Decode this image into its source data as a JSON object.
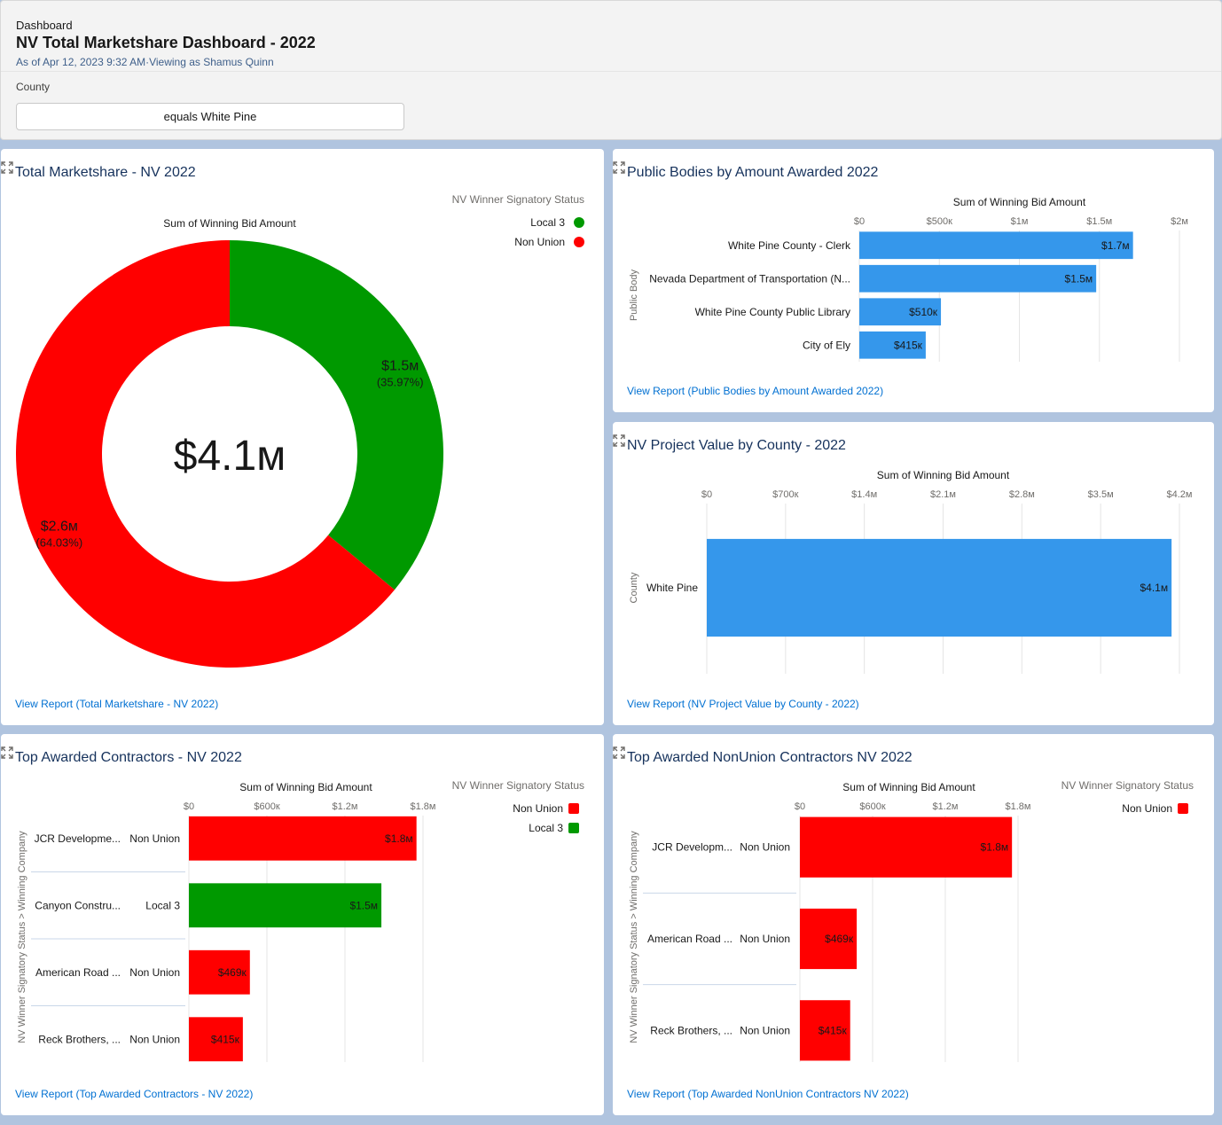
{
  "header": {
    "breadcrumb": "Dashboard",
    "title": "NV Total Marketshare Dashboard - 2022",
    "subtitle": "As of Apr 12, 2023 9:32 AM·Viewing as Shamus Quinn",
    "filter_label": "County",
    "filter_value": "equals White Pine"
  },
  "colors": {
    "green": "#009900",
    "red": "#ff0000",
    "blue": "#3597eb",
    "link": "#0070d2"
  },
  "cards": {
    "marketshare": {
      "title": "Total Marketshare - NV 2022",
      "link": "View Report (Total Marketshare - NV 2022)",
      "center_label": "$4.1м"
    },
    "public_bodies": {
      "title": "Public Bodies by Amount Awarded 2022",
      "link": "View Report (Public Bodies by Amount Awarded 2022)"
    },
    "county": {
      "title": "NV Project Value by County - 2022",
      "link": "View Report (NV Project Value by County - 2022)"
    },
    "top_contractors": {
      "title": "Top Awarded Contractors - NV 2022",
      "link": "View Report (Top Awarded Contractors - NV 2022)"
    },
    "nonunion_contractors": {
      "title": "Top Awarded NonUnion Contractors NV 2022",
      "link": "View Report (Top Awarded NonUnion Contractors NV 2022)"
    }
  },
  "chart_data": [
    {
      "id": "marketshare",
      "type": "pie",
      "title": "Total Marketshare - NV 2022",
      "subtitle": "Sum of Winning Bid Amount",
      "legend_title": "NV Winner Signatory Status",
      "legend_position": "top-right",
      "total_label": "$4.1м",
      "slices": [
        {
          "name": "Local 3",
          "value": 1.5,
          "label": "$1.5м",
          "percent": "(35.97%)",
          "share": 35.97,
          "color": "#009900"
        },
        {
          "name": "Non Union",
          "value": 2.6,
          "label": "$2.6м",
          "percent": "(64.03%)",
          "share": 64.03,
          "color": "#ff0000"
        }
      ]
    },
    {
      "id": "public_bodies",
      "type": "bar",
      "orientation": "horizontal",
      "title": "Public Bodies by Amount Awarded 2022",
      "xlabel": "Sum of Winning Bid Amount",
      "ylabel": "Public Body",
      "xlim": [
        0,
        2000000
      ],
      "ticks": [
        {
          "value": 0,
          "label": "$0"
        },
        {
          "value": 500000,
          "label": "$500к"
        },
        {
          "value": 1000000,
          "label": "$1м"
        },
        {
          "value": 1500000,
          "label": "$1.5м"
        },
        {
          "value": 2000000,
          "label": "$2м"
        }
      ],
      "grid": true,
      "categories": [
        "White Pine County - Clerk",
        "Nevada Department of Transportation (N...",
        "White Pine County Public Library",
        "City of Ely"
      ],
      "values": [
        1710000,
        1480000,
        510000,
        415000
      ],
      "labels": [
        "$1.7м",
        "$1.5м",
        "$510к",
        "$415к"
      ],
      "color": "#3597eb"
    },
    {
      "id": "county",
      "type": "bar",
      "orientation": "horizontal",
      "title": "NV Project Value by County - 2022",
      "xlabel": "Sum of Winning Bid Amount",
      "ylabel": "County",
      "xlim": [
        0,
        4200000
      ],
      "ticks": [
        {
          "value": 0,
          "label": "$0"
        },
        {
          "value": 700000,
          "label": "$700к"
        },
        {
          "value": 1400000,
          "label": "$1.4м"
        },
        {
          "value": 2100000,
          "label": "$2.1м"
        },
        {
          "value": 2800000,
          "label": "$2.8м"
        },
        {
          "value": 3500000,
          "label": "$3.5м"
        },
        {
          "value": 4200000,
          "label": "$4.2м"
        }
      ],
      "grid": true,
      "categories": [
        "White Pine"
      ],
      "values": [
        4130000
      ],
      "labels": [
        "$4.1м"
      ],
      "color": "#3597eb"
    },
    {
      "id": "top_contractors",
      "type": "bar",
      "orientation": "horizontal",
      "title": "Top Awarded Contractors - NV 2022",
      "xlabel": "Sum of Winning Bid Amount",
      "ylabel": "NV Winner Signatory Status  >  Winning Company",
      "legend_title": "NV Winner Signatory Status",
      "legend": [
        {
          "name": "Non Union",
          "color": "#ff0000"
        },
        {
          "name": "Local 3",
          "color": "#009900"
        }
      ],
      "xlim": [
        0,
        1800000
      ],
      "ticks": [
        {
          "value": 0,
          "label": "$0"
        },
        {
          "value": 600000,
          "label": "$600к"
        },
        {
          "value": 1200000,
          "label": "$1.2м"
        },
        {
          "value": 1800000,
          "label": "$1.8м"
        }
      ],
      "grid": true,
      "categories": [
        "JCR Developme...",
        "Canyon Constru...",
        "American Road ...",
        "Reck Brothers, ..."
      ],
      "groups": [
        "Non Union",
        "Local 3",
        "Non Union",
        "Non Union"
      ],
      "values": [
        1750000,
        1480000,
        469000,
        415000
      ],
      "labels": [
        "$1.8м",
        "$1.5м",
        "$469к",
        "$415к"
      ]
    },
    {
      "id": "nonunion_contractors",
      "type": "bar",
      "orientation": "horizontal",
      "title": "Top Awarded NonUnion Contractors NV 2022",
      "xlabel": "Sum of Winning Bid Amount",
      "ylabel": "NV Winner Signatory Status  >  Winning Company",
      "legend_title": "NV Winner Signatory Status",
      "legend": [
        {
          "name": "Non Union",
          "color": "#ff0000"
        }
      ],
      "xlim": [
        0,
        1800000
      ],
      "ticks": [
        {
          "value": 0,
          "label": "$0"
        },
        {
          "value": 600000,
          "label": "$600к"
        },
        {
          "value": 1200000,
          "label": "$1.2м"
        },
        {
          "value": 1800000,
          "label": "$1.8м"
        }
      ],
      "grid": true,
      "categories": [
        "JCR Developm...",
        "American Road ...",
        "Reck Brothers, ..."
      ],
      "groups": [
        "Non Union",
        "Non Union",
        "Non Union"
      ],
      "values": [
        1750000,
        469000,
        415000
      ],
      "labels": [
        "$1.8м",
        "$469к",
        "$415к"
      ]
    }
  ]
}
